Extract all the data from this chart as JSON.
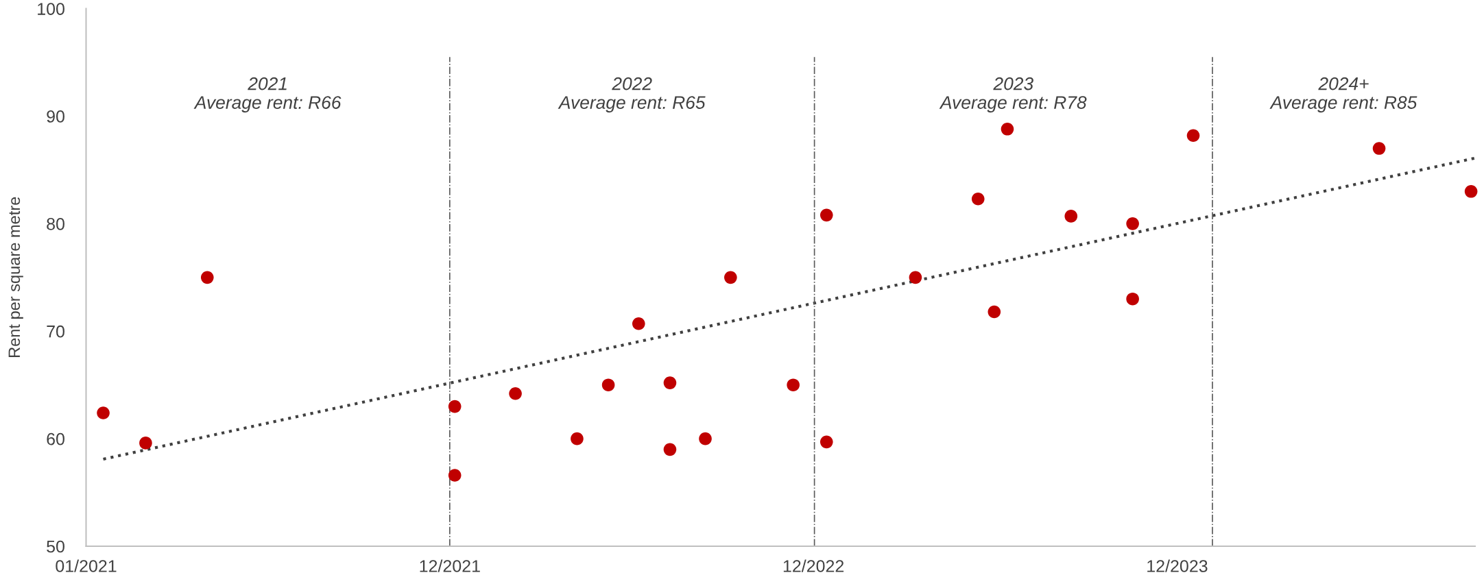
{
  "chart_data": {
    "type": "scatter",
    "ylabel": "Rent per square metre",
    "xlim": [
      "2021-01-01",
      "2024-10-07"
    ],
    "xticks": [
      {
        "value": "2021-01-01",
        "label": "01/2021"
      },
      {
        "value": "2021-12-27",
        "label": "12/2021"
      },
      {
        "value": "2022-12-22",
        "label": "12/2022"
      },
      {
        "value": "2023-12-17",
        "label": "12/2023"
      }
    ],
    "ylim": [
      50,
      100
    ],
    "yticks": [
      50,
      60,
      70,
      80,
      90,
      100
    ],
    "marker": "circle",
    "series": [
      {
        "color": "#c00000",
        "x": [
          "2021-01-18",
          "2021-03-01",
          "2021-05-01",
          "2022-01-01",
          "2022-01-01",
          "2022-03-02",
          "2022-05-02",
          "2022-06-02",
          "2022-07-02",
          "2022-08-02",
          "2022-08-02",
          "2022-09-06",
          "2022-10-01",
          "2022-12-02",
          "2023-01-04",
          "2023-01-04",
          "2023-04-02",
          "2023-06-03",
          "2023-06-19",
          "2023-07-02",
          "2023-09-03",
          "2023-11-03",
          "2023-11-03",
          "2024-01-02",
          "2024-07-04",
          "2024-10-03"
        ],
        "values": [
          62.4,
          59.6,
          75.0,
          63.0,
          56.6,
          64.2,
          60.0,
          65.0,
          70.7,
          65.2,
          59.0,
          60.0,
          75.0,
          65.0,
          59.7,
          80.8,
          75.0,
          82.3,
          71.8,
          88.8,
          80.7,
          80.0,
          73.0,
          88.2,
          87.0,
          83.0
        ]
      },
      {
        "type": "line",
        "color": "#404040",
        "line_style": "dotted",
        "marker": "none",
        "x": [
          "2021-01-18",
          "2024-10-07"
        ],
        "values": [
          58.1,
          86.1
        ]
      }
    ],
    "ref_lines": [
      {
        "axis": "x",
        "value": "2021-12-27",
        "color": "#595959",
        "line_style": "dashdot"
      },
      {
        "axis": "x",
        "value": "2022-12-23",
        "color": "#595959",
        "line_style": "dashdot"
      },
      {
        "axis": "x",
        "value": "2024-01-21",
        "color": "#595959",
        "line_style": "dashdot"
      }
    ],
    "annotations": [
      "2021\nAverage rent: R66",
      "2022\nAverage rent: R65",
      "2023\nAverage rent: R78",
      "2024+\nAverage rent: R85"
    ]
  }
}
